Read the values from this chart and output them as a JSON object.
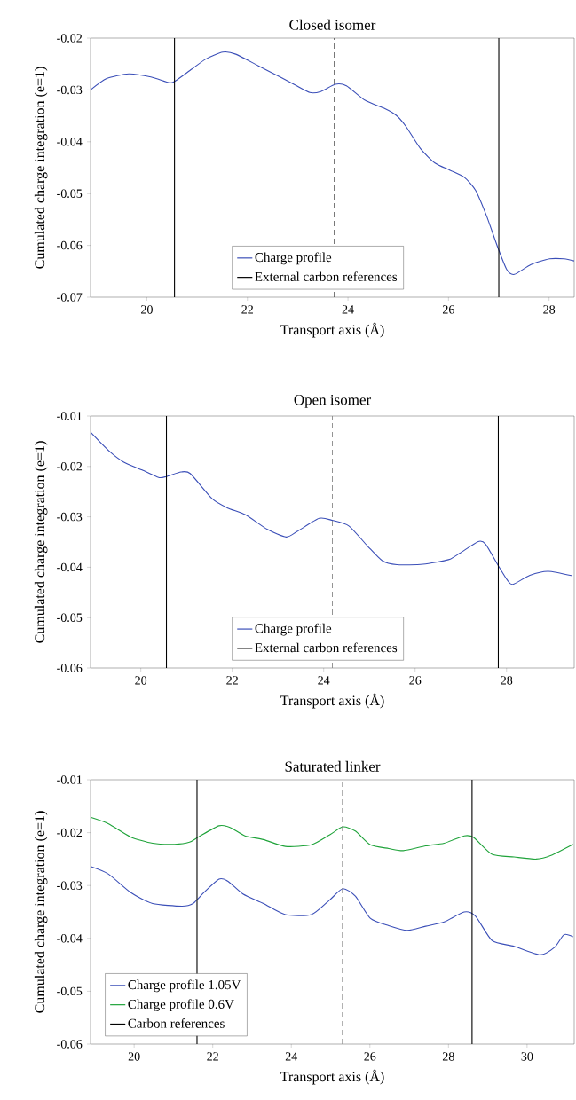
{
  "chart_data": [
    {
      "type": "line",
      "title": "Closed isomer",
      "xlabel": "Transport axis (Å)",
      "ylabel": "Cumulated charge integration (e=1)",
      "xlim": [
        18.88,
        28.5
      ],
      "ylim": [
        -0.07,
        -0.02
      ],
      "xticks": [
        20,
        22,
        24,
        26,
        28
      ],
      "yticks": [
        -0.07,
        -0.06,
        -0.05,
        -0.04,
        -0.03,
        -0.02
      ],
      "legend": "bottom",
      "series": [
        {
          "name": "Charge profile",
          "color": "#3b4fb8",
          "x": [
            18.88,
            19.2,
            19.64,
            20.08,
            20.45,
            20.56,
            20.89,
            21.18,
            21.51,
            21.77,
            22.21,
            22.65,
            22.94,
            23.24,
            23.46,
            23.75,
            23.97,
            24.34,
            24.71,
            24.96,
            25.15,
            25.44,
            25.73,
            26.03,
            26.32,
            26.54,
            26.76,
            26.98,
            27.16,
            27.31,
            27.64,
            28.01,
            28.3,
            28.5
          ],
          "values": [
            -0.03,
            -0.0278,
            -0.0269,
            -0.0275,
            -0.0286,
            -0.0283,
            -0.026,
            -0.024,
            -0.0227,
            -0.0231,
            -0.0253,
            -0.0275,
            -0.029,
            -0.0305,
            -0.0303,
            -0.0289,
            -0.0292,
            -0.032,
            -0.0335,
            -0.0349,
            -0.037,
            -0.0413,
            -0.0441,
            -0.0455,
            -0.0469,
            -0.0494,
            -0.0544,
            -0.0604,
            -0.0647,
            -0.0656,
            -0.0637,
            -0.0626,
            -0.0626,
            -0.063
          ]
        },
        {
          "name": "External carbon references",
          "type": "line",
          "color": "#000000",
          "x": [
            20.55,
            20.55,
            null,
            27.0,
            27.0
          ],
          "values": [
            -0.07,
            -0.02,
            null,
            -0.07,
            -0.02
          ]
        }
      ],
      "ref_lines": [
        {
          "axis": "x",
          "value": 23.73,
          "color": "#333333",
          "line_style": "dashed"
        }
      ]
    },
    {
      "type": "line",
      "title": "Open isomer",
      "xlabel": "Transport axis (Å)",
      "ylabel": "Cumulated charge integration (e=1)",
      "xlim": [
        18.9,
        29.48
      ],
      "ylim": [
        -0.06,
        -0.01
      ],
      "xticks": [
        20,
        22,
        24,
        26,
        28
      ],
      "yticks": [
        -0.06,
        -0.05,
        -0.04,
        -0.03,
        -0.02,
        -0.01
      ],
      "legend": "bottom",
      "series": [
        {
          "name": "Charge profile",
          "color": "#3b4fb8",
          "x": [
            18.9,
            19.3,
            19.62,
            20.03,
            20.39,
            20.56,
            20.88,
            21.08,
            21.56,
            21.89,
            22.29,
            22.77,
            23.18,
            23.42,
            23.9,
            24.19,
            24.55,
            24.96,
            25.28,
            25.6,
            26.17,
            26.73,
            26.98,
            27.38,
            27.54,
            27.82,
            28.02,
            28.14,
            28.51,
            28.91,
            29.44
          ],
          "values": [
            -0.0132,
            -0.0169,
            -0.0191,
            -0.0207,
            -0.0222,
            -0.022,
            -0.0211,
            -0.0214,
            -0.0264,
            -0.0282,
            -0.0296,
            -0.0325,
            -0.034,
            -0.0329,
            -0.0303,
            -0.0307,
            -0.0318,
            -0.0358,
            -0.0387,
            -0.0395,
            -0.0394,
            -0.0385,
            -0.0372,
            -0.0349,
            -0.0354,
            -0.0397,
            -0.0426,
            -0.0434,
            -0.0416,
            -0.0408,
            -0.0417
          ]
        },
        {
          "name": "External carbon references",
          "type": "line",
          "color": "#000000",
          "x": [
            20.56,
            20.56,
            null,
            27.82,
            27.82
          ],
          "values": [
            -0.06,
            -0.01,
            null,
            -0.06,
            -0.01
          ]
        }
      ],
      "ref_lines": [
        {
          "axis": "x",
          "value": 24.19,
          "color": "#888888",
          "line_style": "dashed"
        }
      ]
    },
    {
      "type": "line",
      "title": "Saturated linker",
      "xlabel": "Transport axis (Å)",
      "ylabel": "Cumulated charge integration (e=1)",
      "xlim": [
        18.89,
        31.2
      ],
      "ylim": [
        -0.06,
        -0.01
      ],
      "xticks": [
        20,
        22,
        24,
        26,
        28,
        30
      ],
      "yticks": [
        -0.06,
        -0.05,
        -0.04,
        -0.03,
        -0.02,
        -0.01
      ],
      "legend": "bottom left",
      "series": [
        {
          "name": "Charge profile 1.05V",
          "color": "#3b4fb8",
          "x": [
            18.89,
            19.34,
            19.91,
            20.47,
            21.22,
            21.5,
            21.78,
            22.16,
            22.39,
            22.77,
            23.29,
            23.85,
            24.51,
            24.98,
            25.31,
            25.63,
            26.01,
            26.48,
            26.95,
            27.42,
            27.89,
            28.4,
            28.69,
            29.11,
            29.67,
            30.33,
            30.7,
            30.94,
            31.17
          ],
          "values": [
            -0.0264,
            -0.0278,
            -0.0313,
            -0.0334,
            -0.0339,
            -0.0334,
            -0.0313,
            -0.0288,
            -0.0292,
            -0.0316,
            -0.0334,
            -0.0355,
            -0.0355,
            -0.0327,
            -0.0306,
            -0.032,
            -0.0362,
            -0.0376,
            -0.0385,
            -0.0377,
            -0.0369,
            -0.035,
            -0.0358,
            -0.0404,
            -0.0415,
            -0.0431,
            -0.0417,
            -0.0393,
            -0.0397
          ]
        },
        {
          "name": "Charge profile 0.6V",
          "color": "#1fa33a",
          "x": [
            18.89,
            19.34,
            19.91,
            20.47,
            21.03,
            21.41,
            21.64,
            22.16,
            22.44,
            22.82,
            23.29,
            23.85,
            24.51,
            24.98,
            25.31,
            25.63,
            26.01,
            26.48,
            26.85,
            27.42,
            27.89,
            28.4,
            28.64,
            29.11,
            29.67,
            30.23,
            30.61,
            31.17
          ],
          "values": [
            -0.0171,
            -0.0183,
            -0.0208,
            -0.022,
            -0.0222,
            -0.0218,
            -0.0208,
            -0.0187,
            -0.019,
            -0.0206,
            -0.0213,
            -0.0226,
            -0.0223,
            -0.0204,
            -0.0189,
            -0.0197,
            -0.0223,
            -0.023,
            -0.0234,
            -0.0225,
            -0.022,
            -0.0206,
            -0.0209,
            -0.0241,
            -0.0246,
            -0.025,
            -0.0243,
            -0.0222
          ]
        },
        {
          "name": "Carbon references",
          "type": "line",
          "color": "#000000",
          "x": [
            21.6,
            21.6,
            null,
            28.6,
            28.6
          ],
          "values": [
            -0.06,
            -0.01,
            null,
            -0.06,
            -0.01
          ]
        }
      ],
      "ref_lines": [
        {
          "axis": "x",
          "value": 25.3,
          "color": "#888888",
          "line_style": "dashed"
        }
      ]
    }
  ]
}
